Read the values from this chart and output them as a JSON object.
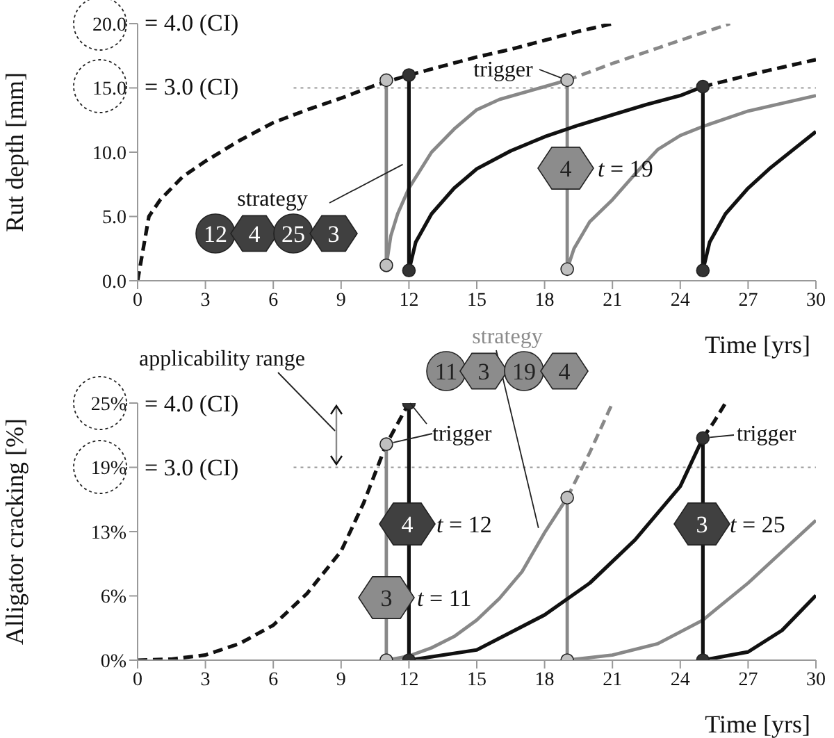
{
  "chart_data": [
    {
      "type": "line",
      "xlabel": "Time [yrs]",
      "ylabel": "Rut depth [mm]",
      "xlim": [
        0,
        30
      ],
      "xticks": [
        0,
        3,
        6,
        9,
        12,
        15,
        18,
        21,
        24,
        27,
        30
      ],
      "ylim": [
        0,
        20
      ],
      "yticks": [
        {
          "value": 0,
          "label": "0.0"
        },
        {
          "value": 5,
          "label": "5.0"
        },
        {
          "value": 10,
          "label": "10.0"
        },
        {
          "value": 15,
          "label": "15.0"
        },
        {
          "value": 20,
          "label": "20.0"
        }
      ],
      "grid": false,
      "ref_lines": [
        {
          "axis": "y",
          "value": 15,
          "color": "#999999",
          "line_style": "dotted"
        }
      ],
      "annotations": [
        "= 4.0 (CI)",
        {
          "text": "strategy",
          "x": 12,
          "y": 9.3
        },
        "12",
        "4",
        "25",
        "3",
        {
          "text": "trigger",
          "x": 19,
          "y": 15.6
        },
        "4",
        "t = 19",
        "= 3.0 (CI)"
      ],
      "series": [
        {
          "type": "line",
          "color": "#111111",
          "line_style": "dashed",
          "x": [
            0,
            0.5,
            1,
            2,
            3,
            4.5,
            6,
            7.5,
            9,
            10.5,
            12,
            13.5,
            15,
            16.5,
            18,
            19.5,
            21
          ],
          "values": [
            0,
            5,
            6.3,
            8.1,
            9.3,
            10.9,
            12.3,
            13.3,
            14.2,
            15.2,
            16,
            16.7,
            17.4,
            18,
            18.7,
            19.4,
            20
          ]
        },
        {
          "type": "line",
          "color": "#888888",
          "line_style": "solid",
          "x": [
            11,
            11,
            11.2,
            11.5,
            12,
            13,
            14,
            15,
            16,
            17,
            18,
            19,
            19,
            19.3,
            20,
            21,
            22,
            23,
            24,
            25,
            27,
            30
          ],
          "values": [
            15.6,
            1.2,
            3.5,
            5.2,
            7.2,
            10,
            11.8,
            13.3,
            14.1,
            14.6,
            15.1,
            15.6,
            0.9,
            2.5,
            4.6,
            6.3,
            8.3,
            10.2,
            11.3,
            12,
            13.2,
            14.4
          ]
        },
        {
          "type": "line",
          "color": "#888888",
          "line_style": "dashed",
          "x": [
            19,
            21,
            23,
            24.5,
            26.2
          ],
          "values": [
            15.6,
            16.9,
            18.1,
            19,
            20
          ]
        },
        {
          "type": "line",
          "color": "#111111",
          "line_style": "solid",
          "x": [
            12,
            12,
            12.3,
            13,
            14,
            15,
            16.5,
            18,
            19.5,
            21,
            22.5,
            24,
            25,
            25,
            25.3,
            26,
            27,
            28,
            29,
            30
          ],
          "values": [
            16,
            0.8,
            3,
            5.2,
            7.2,
            8.7,
            10.1,
            11.2,
            12.1,
            12.9,
            13.7,
            14.4,
            15.1,
            0.8,
            3,
            5.2,
            7.2,
            8.8,
            10.2,
            11.6
          ]
        },
        {
          "type": "line",
          "color": "#111111",
          "line_style": "dashed",
          "x": [
            25,
            27.5,
            30
          ],
          "values": [
            15.1,
            16.2,
            17.2
          ]
        },
        {
          "type": "scatter",
          "color": "#c0c0c0",
          "marker": "circle",
          "x": [
            11,
            11,
            19,
            19
          ],
          "values": [
            15.6,
            1.2,
            15.6,
            0.9
          ]
        },
        {
          "type": "scatter",
          "color": "#333333",
          "marker": "circle",
          "x": [
            12,
            12,
            25,
            25
          ],
          "values": [
            16,
            0.8,
            15.1,
            0.8
          ]
        }
      ]
    },
    {
      "type": "line",
      "xlabel": "Time [yrs]",
      "ylabel": "Alligator cracking [%]",
      "xlim": [
        0,
        30
      ],
      "xticks": [
        0,
        3,
        6,
        9,
        12,
        15,
        18,
        21,
        24,
        27,
        30
      ],
      "ylim": [
        0,
        25
      ],
      "yticks": [
        {
          "value": 0,
          "label": "0%"
        },
        {
          "value": 6.25,
          "label": "6%"
        },
        {
          "value": 12.5,
          "label": "13%"
        },
        {
          "value": 18.75,
          "label": "19%"
        },
        {
          "value": 25,
          "label": "25%"
        }
      ],
      "grid": false,
      "ref_lines": [
        {
          "axis": "y",
          "value": 18.75,
          "color": "#999999",
          "line_style": "dotted"
        }
      ],
      "annotations": [
        "= 4.0 (CI)",
        "applicability range",
        {
          "text": "strategy",
          "x": 17.8,
          "y": 12.2
        },
        "11",
        "3",
        "19",
        "4",
        {
          "text": "trigger",
          "x": 11,
          "y": 21
        },
        {
          "text": "trigger",
          "x": 25,
          "y": 21.6
        },
        "4",
        "t = 12",
        "3",
        "t = 11",
        "3",
        "t = 25",
        "= 3.0 (CI)"
      ],
      "series": [
        {
          "type": "line",
          "color": "#111111",
          "line_style": "dashed",
          "x": [
            0,
            1.5,
            3,
            4.5,
            6,
            7.5,
            9,
            10,
            11,
            12
          ],
          "values": [
            0,
            0.1,
            0.5,
            1.6,
            3.4,
            6.5,
            10.6,
            15.3,
            21,
            25
          ]
        },
        {
          "type": "line",
          "color": "#888888",
          "line_style": "solid",
          "x": [
            11,
            11,
            12,
            13,
            14,
            15,
            16,
            17,
            18,
            19,
            19,
            21,
            23,
            25,
            27,
            30
          ],
          "values": [
            21,
            0,
            0.4,
            1.2,
            2.3,
            3.9,
            6,
            8.6,
            12.4,
            15.8,
            0,
            0.5,
            1.6,
            3.9,
            7.5,
            13.6
          ]
        },
        {
          "type": "line",
          "color": "#888888",
          "line_style": "dashed",
          "x": [
            19,
            20,
            21
          ],
          "values": [
            15.8,
            20.2,
            25
          ]
        },
        {
          "type": "line",
          "color": "#111111",
          "line_style": "solid",
          "x": [
            12,
            12,
            15,
            18,
            20,
            22,
            24,
            25,
            25,
            27,
            28.5,
            30
          ],
          "values": [
            25,
            0,
            1,
            4.4,
            7.5,
            11.7,
            16.9,
            21.6,
            0,
            0.8,
            2.9,
            6.3
          ]
        },
        {
          "type": "line",
          "color": "#111111",
          "line_style": "dashed",
          "x": [
            25,
            25.5,
            26
          ],
          "values": [
            21.6,
            23.2,
            25
          ]
        },
        {
          "type": "scatter",
          "color": "#c0c0c0",
          "marker": "circle",
          "x": [
            11,
            11,
            19,
            19
          ],
          "values": [
            21,
            0,
            15.8,
            0
          ]
        },
        {
          "type": "scatter",
          "color": "#333333",
          "marker": "circle",
          "x": [
            12,
            12,
            25,
            25
          ],
          "values": [
            25,
            0,
            21.6,
            0
          ]
        }
      ]
    }
  ]
}
